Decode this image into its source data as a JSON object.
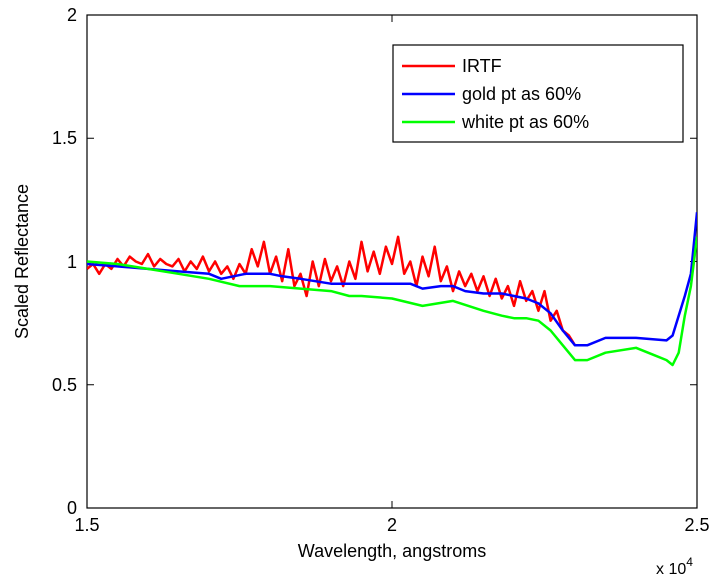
{
  "chart_data": {
    "type": "line",
    "xlabel": "Wavelength, angstroms",
    "ylabel": "Scaled Reflectance",
    "x_multiplier": "x 10",
    "x_multiplier_exp": "4",
    "xlim": [
      15000,
      25000
    ],
    "ylim": [
      0,
      2
    ],
    "x_ticks": [
      15000,
      20000,
      25000
    ],
    "x_tick_labels": [
      "1.5",
      "2",
      "2.5"
    ],
    "y_ticks": [
      0,
      0.5,
      1,
      1.5,
      2
    ],
    "y_tick_labels": [
      "0",
      "0.5",
      "1",
      "1.5",
      "2"
    ],
    "grid": false,
    "legend_position": "top-right",
    "series": [
      {
        "name": "IRTF",
        "color": "#ff0000",
        "x": [
          15000,
          15100,
          15200,
          15300,
          15400,
          15500,
          15600,
          15700,
          15800,
          15900,
          16000,
          16100,
          16200,
          16300,
          16400,
          16500,
          16600,
          16700,
          16800,
          16900,
          17000,
          17100,
          17200,
          17300,
          17400,
          17500,
          17600,
          17700,
          17800,
          17900,
          18000,
          18100,
          18200,
          18300,
          18400,
          18500,
          18600,
          18700,
          18800,
          18900,
          19000,
          19100,
          19200,
          19300,
          19400,
          19500,
          19600,
          19700,
          19800,
          19900,
          20000,
          20100,
          20200,
          20300,
          20400,
          20500,
          20600,
          20700,
          20800,
          20900,
          21000,
          21100,
          21200,
          21300,
          21400,
          21500,
          21600,
          21700,
          21800,
          21900,
          22000,
          22100,
          22200,
          22300,
          22400,
          22500,
          22600,
          22700,
          22800,
          22900,
          23000
        ],
        "y": [
          0.97,
          0.99,
          0.95,
          0.99,
          0.97,
          1.01,
          0.98,
          1.02,
          1.0,
          0.99,
          1.03,
          0.98,
          1.01,
          0.99,
          0.98,
          1.01,
          0.96,
          1.0,
          0.97,
          1.02,
          0.96,
          1.0,
          0.95,
          0.98,
          0.93,
          0.99,
          0.95,
          1.05,
          0.98,
          1.08,
          0.95,
          1.02,
          0.92,
          1.05,
          0.9,
          0.95,
          0.86,
          1.0,
          0.9,
          1.01,
          0.92,
          0.98,
          0.9,
          1.0,
          0.93,
          1.08,
          0.96,
          1.04,
          0.95,
          1.06,
          0.99,
          1.1,
          0.95,
          1.0,
          0.9,
          1.02,
          0.94,
          1.06,
          0.92,
          0.98,
          0.88,
          0.96,
          0.9,
          0.95,
          0.88,
          0.94,
          0.86,
          0.93,
          0.85,
          0.9,
          0.82,
          0.92,
          0.84,
          0.88,
          0.8,
          0.88,
          0.76,
          0.8,
          0.72,
          0.7,
          0.66
        ]
      },
      {
        "name": "gold pt as 60%",
        "color": "#0000ff",
        "x": [
          15000,
          15500,
          16000,
          16500,
          17000,
          17200,
          17400,
          17600,
          17800,
          18000,
          18200,
          18500,
          19000,
          19500,
          20000,
          20300,
          20500,
          20800,
          21000,
          21200,
          21500,
          21800,
          22000,
          22200,
          22400,
          22600,
          22800,
          23000,
          23200,
          23500,
          24000,
          24500,
          24600,
          24700,
          24800,
          24900,
          25000
        ],
        "y": [
          0.99,
          0.98,
          0.97,
          0.96,
          0.95,
          0.93,
          0.94,
          0.95,
          0.95,
          0.95,
          0.94,
          0.93,
          0.91,
          0.91,
          0.91,
          0.91,
          0.89,
          0.9,
          0.9,
          0.88,
          0.87,
          0.87,
          0.86,
          0.85,
          0.83,
          0.79,
          0.72,
          0.66,
          0.66,
          0.69,
          0.69,
          0.68,
          0.7,
          0.78,
          0.86,
          0.95,
          1.2
        ]
      },
      {
        "name": "white pt as 60%",
        "color": "#00ff00",
        "x": [
          15000,
          15500,
          16000,
          16500,
          17000,
          17500,
          18000,
          18500,
          19000,
          19300,
          19500,
          20000,
          20500,
          21000,
          21500,
          21800,
          22000,
          22200,
          22400,
          22600,
          22800,
          23000,
          23200,
          23500,
          24000,
          24300,
          24500,
          24600,
          24700,
          24800,
          24900,
          25000
        ],
        "y": [
          1.0,
          0.99,
          0.97,
          0.95,
          0.93,
          0.9,
          0.9,
          0.89,
          0.88,
          0.86,
          0.86,
          0.85,
          0.82,
          0.84,
          0.8,
          0.78,
          0.77,
          0.77,
          0.76,
          0.72,
          0.66,
          0.6,
          0.6,
          0.63,
          0.65,
          0.62,
          0.6,
          0.58,
          0.63,
          0.78,
          0.9,
          1.1
        ]
      }
    ]
  }
}
